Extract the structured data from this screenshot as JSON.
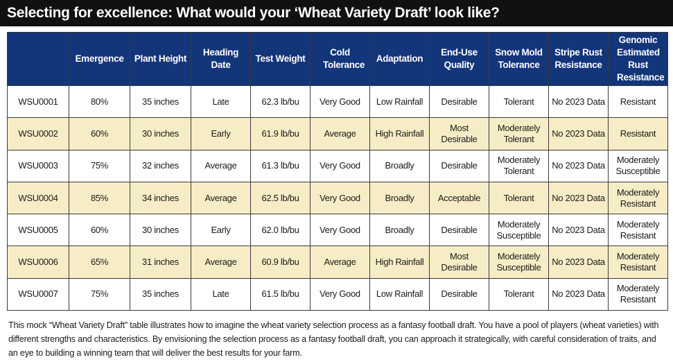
{
  "title": "Selecting for excellence: What would your ‘Wheat Variety Draft’ look like?",
  "table": {
    "headers": [
      "",
      "Emergence",
      "Plant Height",
      "Heading Date",
      "Test Weight",
      "Cold Tolerance",
      "Adaptation",
      "End-Use Quality",
      "Snow Mold Tolerance",
      "Stripe Rust Resistance",
      "Genomic Estimated Rust Resistance"
    ],
    "rows": [
      [
        "WSU0001",
        "80%",
        "35 inches",
        "Late",
        "62.3 lb/bu",
        "Very Good",
        "Low Rainfall",
        "Desirable",
        "Tolerant",
        "No 2023 Data",
        "Resistant"
      ],
      [
        "WSU0002",
        "60%",
        "30 inches",
        "Early",
        "61.9 lb/bu",
        "Average",
        "High Rainfall",
        "Most Desirable",
        "Moderately Tolerant",
        "No 2023 Data",
        "Resistant"
      ],
      [
        "WSU0003",
        "75%",
        "32 inches",
        "Average",
        "61.3 lb/bu",
        "Very Good",
        "Broadly",
        "Desirable",
        "Moderately Tolerant",
        "No 2023 Data",
        "Moderately Susceptible"
      ],
      [
        "WSU0004",
        "85%",
        "34 inches",
        "Average",
        "62.5 lb/bu",
        "Very Good",
        "Broadly",
        "Acceptable",
        "Tolerant",
        "No 2023 Data",
        "Moderately Resistant"
      ],
      [
        "WSU0005",
        "60%",
        "30 inches",
        "Early",
        "62.0 lb/bu",
        "Very Good",
        "Broadly",
        "Desirable",
        "Moderately Susceptible",
        "No 2023 Data",
        "Moderately Resistant"
      ],
      [
        "WSU0006",
        "65%",
        "31 inches",
        "Average",
        "60.9 lb/bu",
        "Average",
        "High Rainfall",
        "Most Desirable",
        "Moderately Susceptible",
        "No 2023 Data",
        "Moderately Resistant"
      ],
      [
        "WSU0007",
        "75%",
        "35 inches",
        "Late",
        "61.5 lb/bu",
        "Very Good",
        "Low Rainfall",
        "Desirable",
        "Tolerant",
        "No 2023 Data",
        "Moderately Resistant"
      ]
    ]
  },
  "caption": "This mock “Wheat Variety Draft” table illustrates how to imagine the wheat variety selection process as a fantasy football draft. You have a pool of players (wheat varieties) with different strengths and characteristics. By envisioning the selection process as a fantasy football draft, you can approach it strategically, with careful consideration of traits, and an eye to building a winning team that will deliver the best results for your farm.",
  "colors": {
    "banner_bg": "#111111",
    "header_bg": "#13357a",
    "row_shade": "#f6edc6",
    "border": "#3a3a3a"
  }
}
